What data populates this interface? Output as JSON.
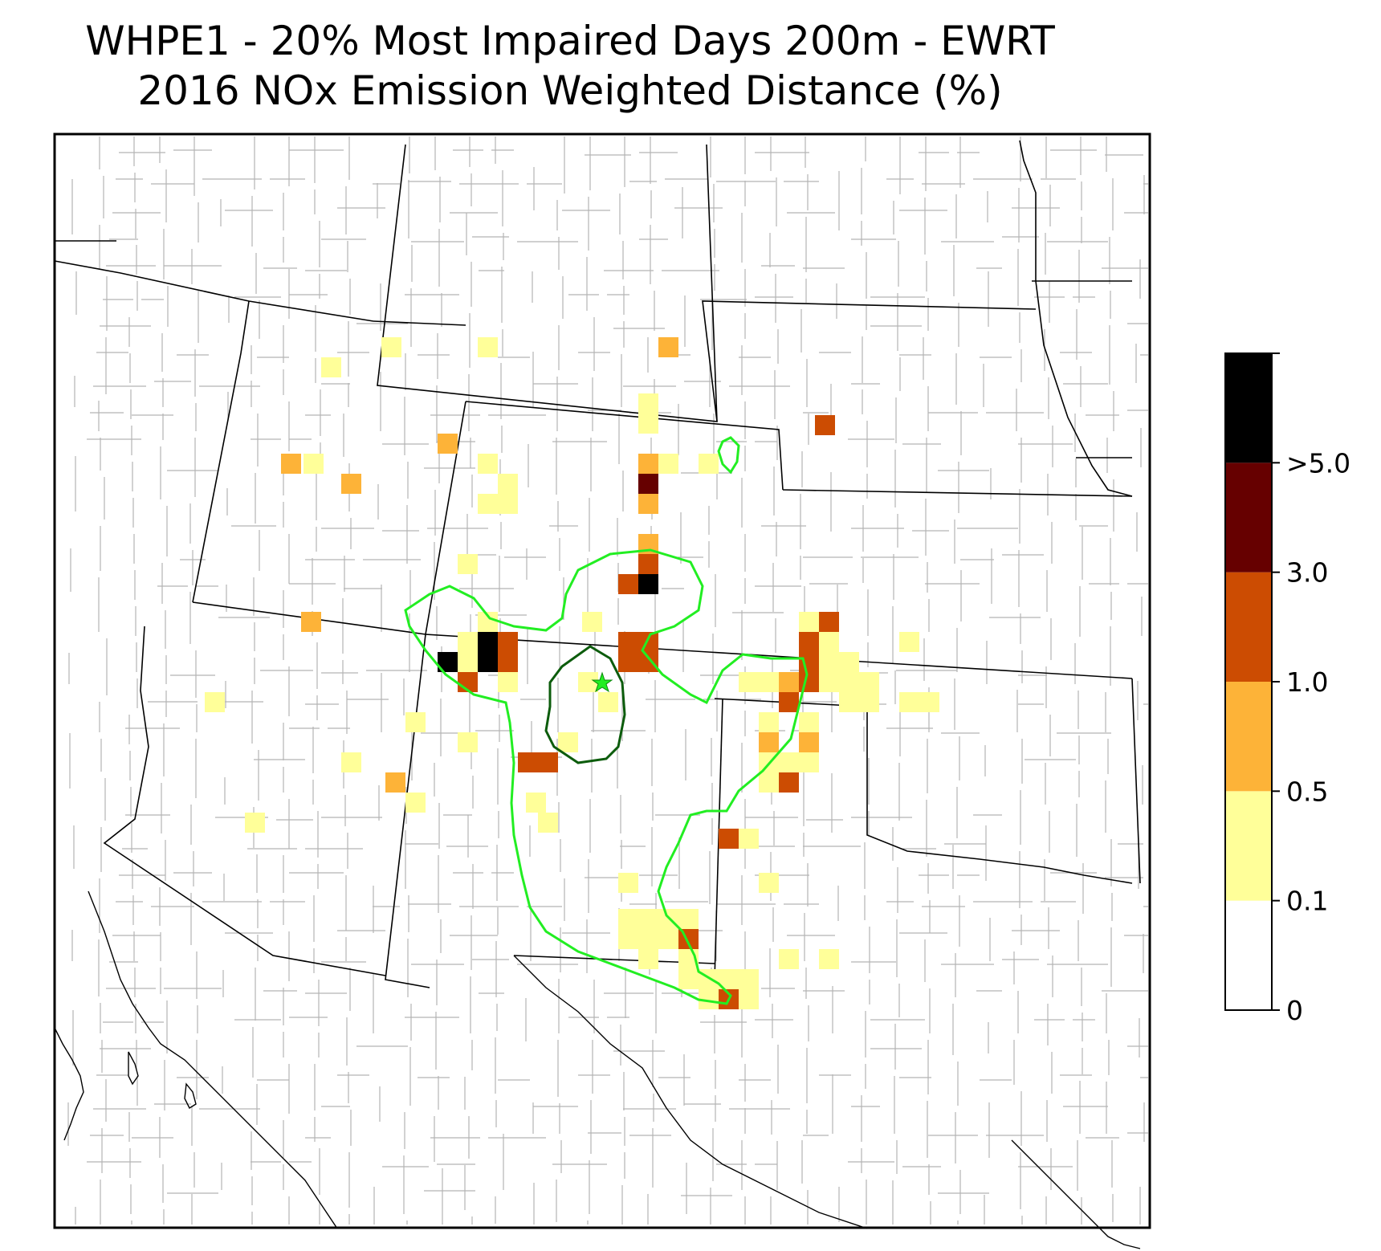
{
  "title": {
    "line1": "WHPE1 - 20% Most Impaired Days 200m - EWRT",
    "line2": "2016 NOx Emission Weighted Distance (%)"
  },
  "colorbar": {
    "bins": [
      {
        "color": "#ffffff"
      },
      {
        "color": "#ffff99"
      },
      {
        "color": "#fdb338"
      },
      {
        "color": "#cc4c02"
      },
      {
        "color": "#660000"
      },
      {
        "color": "#000000"
      }
    ],
    "tick_labels": [
      "0",
      "0.1",
      "0.5",
      "1.0",
      "3.0",
      ">5.0"
    ]
  },
  "map": {
    "border_color": "#000000",
    "county_line_color": "#aaaaaa",
    "state_line_color": "#000000",
    "outer_contour_color": "#22ee22",
    "inner_contour_color": "#0c5c0c",
    "site_marker": "star",
    "site_marker_color": "#22ee22"
  },
  "legend_colors": {
    "lt01": "#ffffff",
    "b1": "#ffff99",
    "b2": "#fdb338",
    "b3": "#cc4c02",
    "b4": "#660000",
    "b5": "#000000"
  }
}
